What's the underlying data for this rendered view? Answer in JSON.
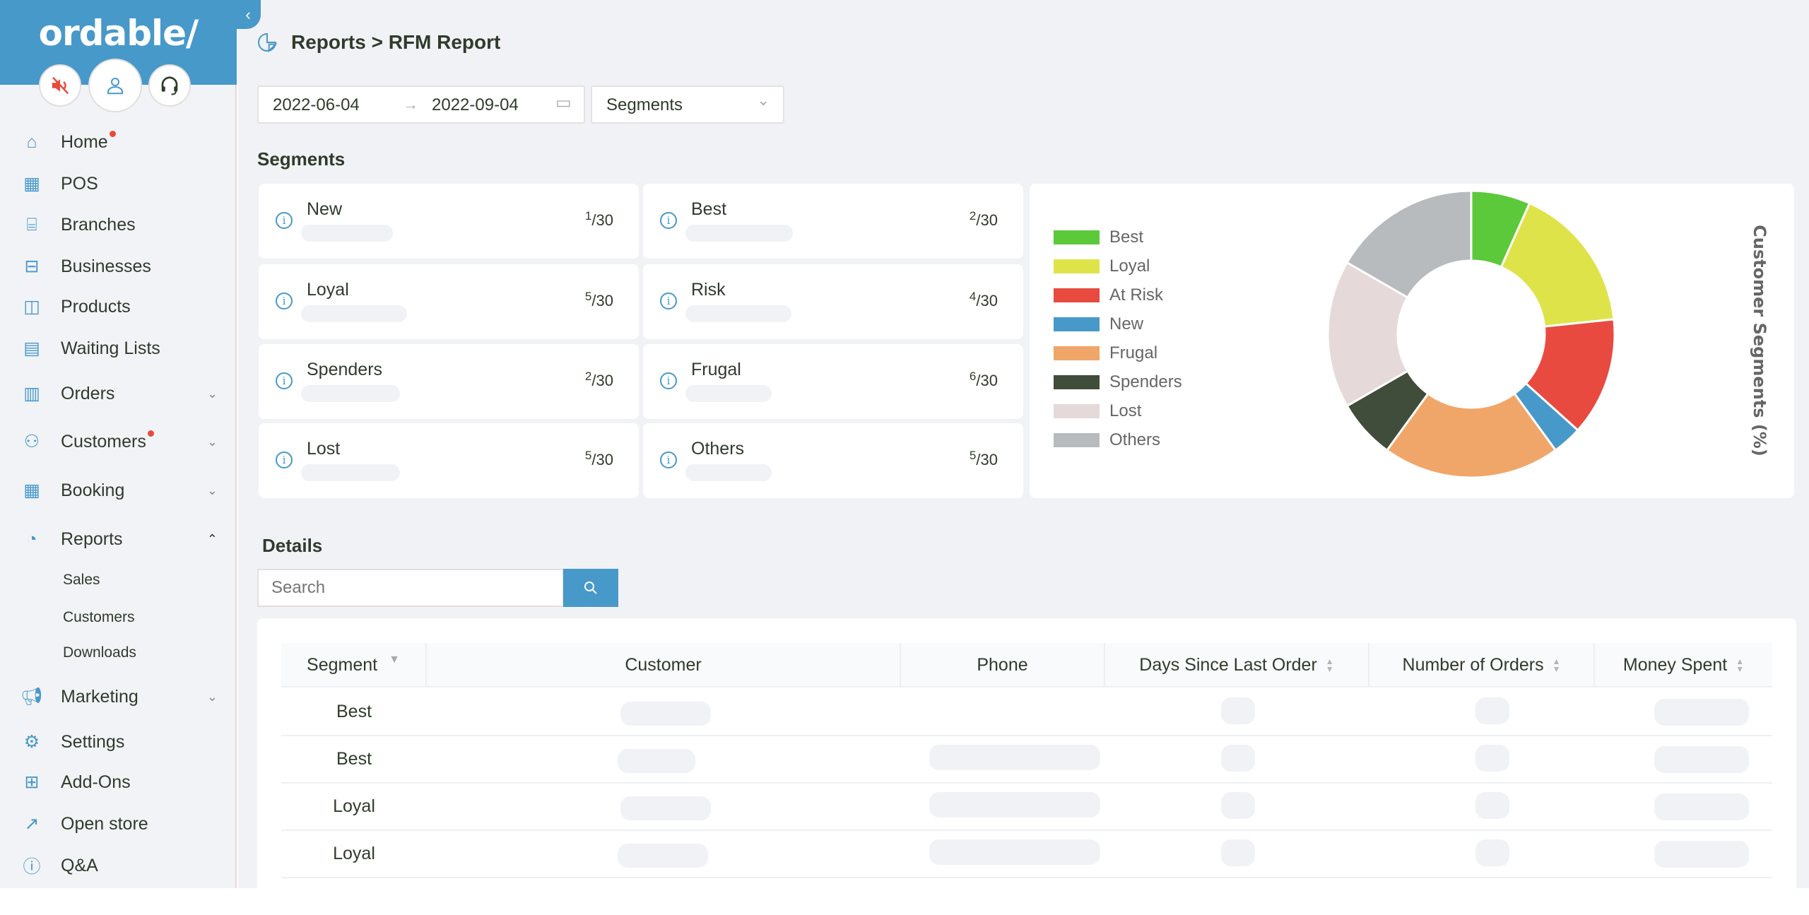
{
  "sidebar": {
    "logo": "ordable/",
    "top_icons": [
      "sound-muted-icon",
      "user-icon",
      "headset-icon"
    ],
    "items": [
      {
        "label": "Home",
        "icon": "home-icon",
        "badge": true
      },
      {
        "label": "POS",
        "icon": "calculator-icon"
      },
      {
        "label": "Branches",
        "icon": "store-icon"
      },
      {
        "label": "Businesses",
        "icon": "briefcase-icon"
      },
      {
        "label": "Products",
        "icon": "bag-icon"
      },
      {
        "label": "Waiting Lists",
        "icon": "clipboard-icon"
      },
      {
        "label": "Orders",
        "icon": "receipt-icon",
        "expandable": true
      },
      {
        "label": "Customers",
        "icon": "user-icon",
        "badge": true,
        "expandable": true
      },
      {
        "label": "Booking",
        "icon": "calendar-icon",
        "expandable": true
      },
      {
        "label": "Reports",
        "icon": "report-icon",
        "expanded": true
      },
      {
        "label": "Marketing",
        "icon": "megaphone-icon",
        "expandable": true
      },
      {
        "label": "Settings",
        "icon": "gear-icon"
      },
      {
        "label": "Add-Ons",
        "icon": "add-ons-icon"
      },
      {
        "label": "Open store",
        "icon": "external-link-icon"
      },
      {
        "label": "Q&A",
        "icon": "question-icon"
      }
    ],
    "reports_sub": [
      "Sales",
      "Customers",
      "Downloads"
    ]
  },
  "header": {
    "breadcrumb": "Reports > RFM Report"
  },
  "filters": {
    "date_from": "2022-06-04",
    "date_to": "2022-09-04",
    "segment_select": "Segments"
  },
  "segments": {
    "title": "Segments",
    "cards": [
      {
        "name": "New",
        "count": "1",
        "total": "30"
      },
      {
        "name": "Best",
        "count": "2",
        "total": "30"
      },
      {
        "name": "Loyal",
        "count": "5",
        "total": "30"
      },
      {
        "name": "Risk",
        "count": "4",
        "total": "30"
      },
      {
        "name": "Spenders",
        "count": "2",
        "total": "30"
      },
      {
        "name": "Frugal",
        "count": "6",
        "total": "30"
      },
      {
        "name": "Lost",
        "count": "5",
        "total": "30"
      },
      {
        "name": "Others",
        "count": "5",
        "total": "30"
      }
    ]
  },
  "chart_data": {
    "type": "pie",
    "donut": true,
    "title": "Customer Segments (%)",
    "legend_position": "left",
    "categories": [
      "Best",
      "Loyal",
      "At Risk",
      "New",
      "Frugal",
      "Spenders",
      "Lost",
      "Others"
    ],
    "values": [
      6.67,
      16.67,
      13.33,
      3.33,
      20,
      6.67,
      16.67,
      16.67
    ],
    "colors": [
      "#5cc93a",
      "#dfe34a",
      "#e84a40",
      "#4799c9",
      "#f0a668",
      "#3f4d3a",
      "#e5d9d9",
      "#b7bbbd"
    ]
  },
  "details": {
    "title": "Details",
    "search_placeholder": "Search",
    "columns": [
      "Segment",
      "Customer",
      "Phone",
      "Days Since Last Order",
      "Number of Orders",
      "Money Spent"
    ],
    "rows": [
      {
        "segment": "Best"
      },
      {
        "segment": "Best"
      },
      {
        "segment": "Loyal"
      },
      {
        "segment": "Loyal"
      }
    ]
  }
}
